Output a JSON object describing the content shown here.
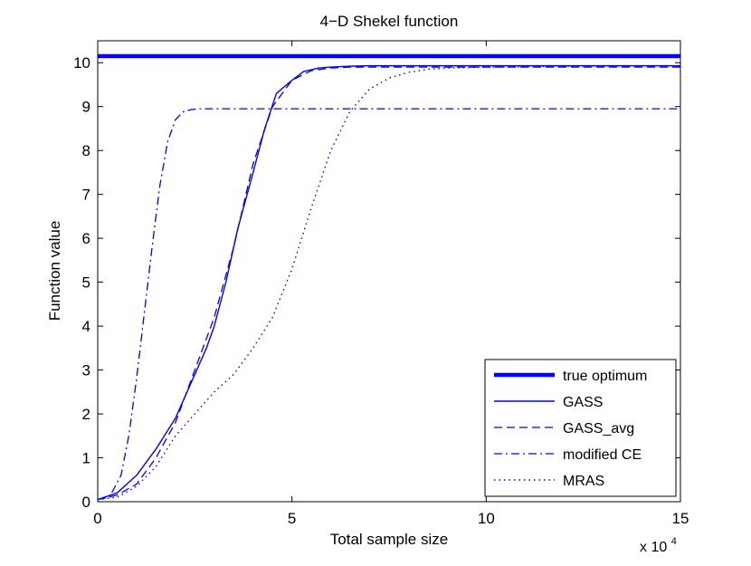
{
  "chart_data": {
    "type": "line",
    "title": "4−D Shekel function",
    "xlabel": "Total sample size",
    "ylabel": "Function value",
    "x_multiplier_label": "x 10",
    "x_multiplier_exponent": "4",
    "xlim": [
      0,
      15
    ],
    "ylim": [
      0,
      10.5
    ],
    "xticks": [
      0,
      5,
      10,
      15
    ],
    "xtick_labels": [
      "0",
      "5",
      "10",
      "15"
    ],
    "yticks": [
      0,
      1,
      2,
      3,
      4,
      5,
      6,
      7,
      8,
      9,
      10
    ],
    "ytick_labels": [
      "0",
      "1",
      "2",
      "3",
      "4",
      "5",
      "6",
      "7",
      "8",
      "9",
      "10"
    ],
    "grid": false,
    "legend_position": "bottom-right",
    "colors": {
      "series": "#0000ff",
      "axes": "#000000",
      "background": "#ffffff"
    },
    "series": [
      {
        "name": "true optimum",
        "style": "thick-solid",
        "x": [
          0,
          15
        ],
        "y": [
          10.15,
          10.15
        ]
      },
      {
        "name": "GASS",
        "style": "solid",
        "x": [
          0,
          0.5,
          1.0,
          1.5,
          2.0,
          2.5,
          2.8,
          3.0,
          3.3,
          3.6,
          4.0,
          4.3,
          4.6,
          5.0,
          5.3,
          5.7,
          6.0,
          6.5,
          7.0,
          8.0,
          10.0,
          15.0
        ],
        "y": [
          0.05,
          0.2,
          0.6,
          1.2,
          1.9,
          2.9,
          3.5,
          4.0,
          5.0,
          6.2,
          7.5,
          8.5,
          9.3,
          9.6,
          9.8,
          9.88,
          9.9,
          9.92,
          9.93,
          9.93,
          9.93,
          9.93
        ]
      },
      {
        "name": "GASS_avg",
        "style": "dashed",
        "x": [
          0,
          0.5,
          1.0,
          1.5,
          2.0,
          2.5,
          3.0,
          3.5,
          4.0,
          4.5,
          5.0,
          5.5,
          6.0,
          6.5,
          7.0,
          8.0,
          10.0,
          15.0
        ],
        "y": [
          0.05,
          0.15,
          0.4,
          1.0,
          1.8,
          3.0,
          4.2,
          5.8,
          7.7,
          9.0,
          9.6,
          9.82,
          9.88,
          9.9,
          9.9,
          9.9,
          9.9,
          9.9
        ]
      },
      {
        "name": "modified CE",
        "style": "dashdot",
        "x": [
          0,
          0.3,
          0.6,
          0.8,
          1.0,
          1.2,
          1.4,
          1.6,
          1.8,
          2.0,
          2.2,
          2.4,
          2.6,
          2.8,
          3.0,
          3.5,
          5.0,
          10.0,
          15.0
        ],
        "y": [
          0.05,
          0.1,
          0.6,
          1.5,
          2.8,
          4.3,
          5.8,
          7.2,
          8.2,
          8.7,
          8.88,
          8.93,
          8.95,
          8.95,
          8.95,
          8.95,
          8.95,
          8.95,
          8.95
        ]
      },
      {
        "name": "MRAS",
        "style": "dotted",
        "x": [
          0,
          0.5,
          1.0,
          1.5,
          2.0,
          2.5,
          3.0,
          3.5,
          4.0,
          4.5,
          5.0,
          5.5,
          6.0,
          6.5,
          7.0,
          7.5,
          8.0,
          8.5,
          9.0,
          10.0,
          12.0,
          15.0
        ],
        "y": [
          0.05,
          0.1,
          0.35,
          0.8,
          1.5,
          2.0,
          2.5,
          2.9,
          3.5,
          4.2,
          5.3,
          6.7,
          8.0,
          8.9,
          9.4,
          9.65,
          9.78,
          9.85,
          9.88,
          9.9,
          9.92,
          9.93
        ]
      }
    ]
  }
}
